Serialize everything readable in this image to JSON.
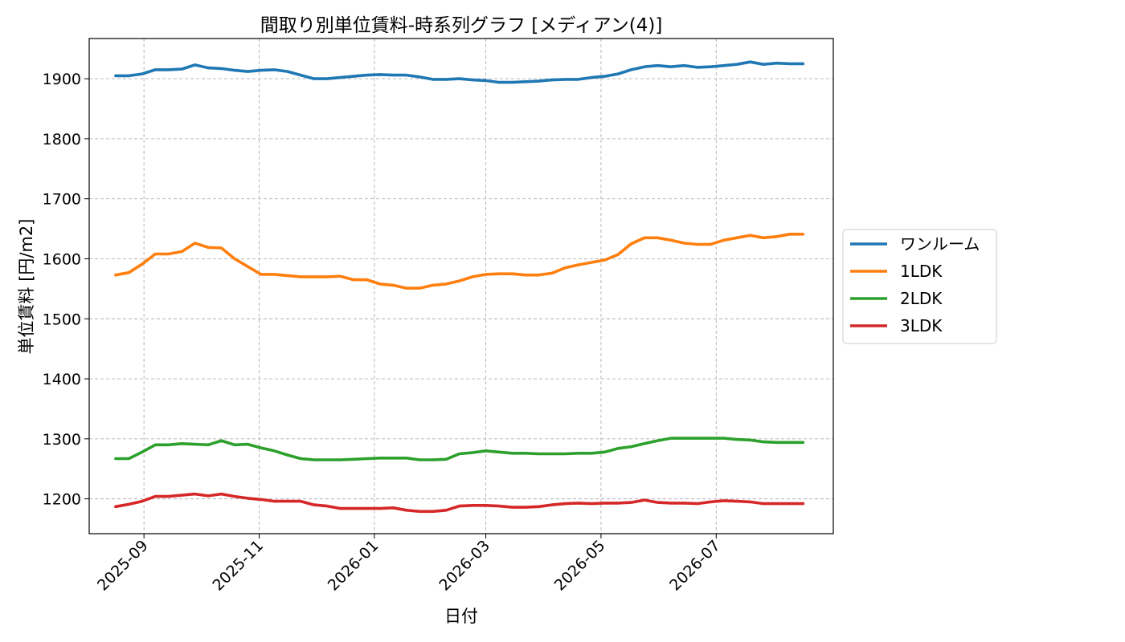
{
  "chart_data": {
    "type": "line",
    "title": "間取り別単位賃料-時系列グラフ [メディアン(4)]",
    "xlabel": "日付",
    "ylabel": "単位賃料 [円/m2]",
    "ylim": [
      1142,
      1967
    ],
    "xlim": [
      "2025-08-03",
      "2026-09-01"
    ],
    "grid": true,
    "legend_position": "right",
    "x_ticks": [
      {
        "date": "2025-09-01",
        "label": "2025-09"
      },
      {
        "date": "2025-11-01",
        "label": "2025-11"
      },
      {
        "date": "2026-01-01",
        "label": "2026-01"
      },
      {
        "date": "2026-03-01",
        "label": "2026-03"
      },
      {
        "date": "2026-05-01",
        "label": "2026-05"
      },
      {
        "date": "2026-07-01",
        "label": "2026-07"
      }
    ],
    "y_ticks": [
      {
        "value": 1200,
        "label": "1200"
      },
      {
        "value": 1300,
        "label": "1300"
      },
      {
        "value": 1400,
        "label": "1400"
      },
      {
        "value": 1500,
        "label": "1500"
      },
      {
        "value": 1600,
        "label": "1600"
      },
      {
        "value": 1700,
        "label": "1700"
      },
      {
        "value": 1800,
        "label": "1800"
      },
      {
        "value": 1900,
        "label": "1900"
      }
    ],
    "x": [
      "2025-08-17",
      "2025-08-24",
      "2025-08-31",
      "2025-09-07",
      "2025-09-14",
      "2025-09-21",
      "2025-09-28",
      "2025-10-05",
      "2025-10-12",
      "2025-10-19",
      "2025-10-26",
      "2025-11-02",
      "2025-11-09",
      "2025-11-16",
      "2025-11-23",
      "2025-11-30",
      "2025-12-07",
      "2025-12-14",
      "2025-12-21",
      "2025-12-28",
      "2026-01-04",
      "2026-01-11",
      "2026-01-18",
      "2026-01-25",
      "2026-02-01",
      "2026-02-08",
      "2026-02-15",
      "2026-02-22",
      "2026-03-01",
      "2026-03-08",
      "2026-03-15",
      "2026-03-22",
      "2026-03-29",
      "2026-04-05",
      "2026-04-12",
      "2026-04-19",
      "2026-04-26",
      "2026-05-03",
      "2026-05-10",
      "2026-05-17",
      "2026-05-24",
      "2026-05-31",
      "2026-06-07",
      "2026-06-14",
      "2026-06-21",
      "2026-06-28",
      "2026-07-05",
      "2026-07-12",
      "2026-07-19",
      "2026-07-26",
      "2026-08-02",
      "2026-08-09",
      "2026-08-16"
    ],
    "series": [
      {
        "name": "ワンルーム",
        "color": "#1f77b4",
        "values": [
          1905,
          1905,
          1908,
          1915,
          1915,
          1916,
          1923,
          1918,
          1917,
          1914,
          1912,
          1914,
          1915,
          1912,
          1906,
          1900,
          1900,
          1902,
          1904,
          1906,
          1907,
          1906,
          1906,
          1903,
          1899,
          1899,
          1900,
          1898,
          1897,
          1894,
          1894,
          1895,
          1896,
          1898,
          1899,
          1899,
          1902,
          1904,
          1908,
          1915,
          1920,
          1922,
          1920,
          1922,
          1919,
          1920,
          1922,
          1924,
          1928,
          1924,
          1926,
          1925,
          1925
        ]
      },
      {
        "name": "1LDK",
        "color": "#ff7f0e",
        "values": [
          1573,
          1577,
          1591,
          1608,
          1608,
          1612,
          1626,
          1619,
          1618,
          1600,
          1587,
          1574,
          1574,
          1572,
          1570,
          1570,
          1570,
          1571,
          1565,
          1565,
          1558,
          1556,
          1551,
          1551,
          1556,
          1558,
          1563,
          1570,
          1574,
          1575,
          1575,
          1573,
          1573,
          1576,
          1585,
          1590,
          1594,
          1598,
          1607,
          1625,
          1635,
          1635,
          1631,
          1626,
          1624,
          1624,
          1631,
          1635,
          1639,
          1635,
          1637,
          1641,
          1641
        ]
      },
      {
        "name": "2LDK",
        "color": "#2ca02c",
        "values": [
          1267,
          1267,
          1278,
          1290,
          1290,
          1292,
          1291,
          1290,
          1297,
          1290,
          1291,
          1285,
          1280,
          1273,
          1267,
          1265,
          1265,
          1265,
          1266,
          1267,
          1268,
          1268,
          1268,
          1265,
          1265,
          1266,
          1275,
          1277,
          1280,
          1278,
          1276,
          1276,
          1275,
          1275,
          1275,
          1276,
          1276,
          1278,
          1284,
          1287,
          1292,
          1297,
          1301,
          1301,
          1301,
          1301,
          1301,
          1299,
          1298,
          1295,
          1294,
          1294,
          1294
        ]
      },
      {
        "name": "3LDK",
        "color": "#d62728",
        "values": [
          1187,
          1191,
          1196,
          1204,
          1204,
          1206,
          1208,
          1205,
          1208,
          1204,
          1201,
          1199,
          1196,
          1196,
          1196,
          1190,
          1188,
          1184,
          1184,
          1184,
          1184,
          1185,
          1181,
          1179,
          1179,
          1181,
          1188,
          1189,
          1189,
          1188,
          1186,
          1186,
          1187,
          1190,
          1192,
          1193,
          1192,
          1193,
          1193,
          1194,
          1198,
          1194,
          1193,
          1193,
          1192,
          1195,
          1197,
          1196,
          1195,
          1192,
          1192,
          1192,
          1192
        ]
      }
    ]
  }
}
